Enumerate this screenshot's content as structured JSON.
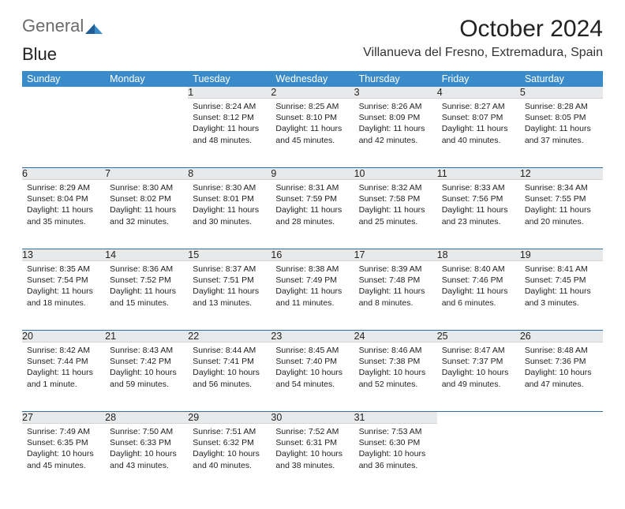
{
  "logo": {
    "text_general": "General",
    "text_blue": "Blue"
  },
  "title": {
    "month": "October 2024",
    "location": "Villanueva del Fresno, Extremadura, Spain"
  },
  "colors": {
    "header_bg": "#3a8bc9",
    "header_fg": "#ffffff",
    "daynum_bg": "#e8e9ea",
    "week_sep": "#2f6fa5",
    "text": "#222222",
    "logo_blue": "#2b7bbf",
    "logo_gray": "#6b6b6b"
  },
  "weekdays": [
    "Sunday",
    "Monday",
    "Tuesday",
    "Wednesday",
    "Thursday",
    "Friday",
    "Saturday"
  ],
  "weeks": [
    [
      null,
      null,
      {
        "n": "1",
        "sr": "Sunrise: 8:24 AM",
        "ss": "Sunset: 8:12 PM",
        "dl": "Daylight: 11 hours and 48 minutes."
      },
      {
        "n": "2",
        "sr": "Sunrise: 8:25 AM",
        "ss": "Sunset: 8:10 PM",
        "dl": "Daylight: 11 hours and 45 minutes."
      },
      {
        "n": "3",
        "sr": "Sunrise: 8:26 AM",
        "ss": "Sunset: 8:09 PM",
        "dl": "Daylight: 11 hours and 42 minutes."
      },
      {
        "n": "4",
        "sr": "Sunrise: 8:27 AM",
        "ss": "Sunset: 8:07 PM",
        "dl": "Daylight: 11 hours and 40 minutes."
      },
      {
        "n": "5",
        "sr": "Sunrise: 8:28 AM",
        "ss": "Sunset: 8:05 PM",
        "dl": "Daylight: 11 hours and 37 minutes."
      }
    ],
    [
      {
        "n": "6",
        "sr": "Sunrise: 8:29 AM",
        "ss": "Sunset: 8:04 PM",
        "dl": "Daylight: 11 hours and 35 minutes."
      },
      {
        "n": "7",
        "sr": "Sunrise: 8:30 AM",
        "ss": "Sunset: 8:02 PM",
        "dl": "Daylight: 11 hours and 32 minutes."
      },
      {
        "n": "8",
        "sr": "Sunrise: 8:30 AM",
        "ss": "Sunset: 8:01 PM",
        "dl": "Daylight: 11 hours and 30 minutes."
      },
      {
        "n": "9",
        "sr": "Sunrise: 8:31 AM",
        "ss": "Sunset: 7:59 PM",
        "dl": "Daylight: 11 hours and 28 minutes."
      },
      {
        "n": "10",
        "sr": "Sunrise: 8:32 AM",
        "ss": "Sunset: 7:58 PM",
        "dl": "Daylight: 11 hours and 25 minutes."
      },
      {
        "n": "11",
        "sr": "Sunrise: 8:33 AM",
        "ss": "Sunset: 7:56 PM",
        "dl": "Daylight: 11 hours and 23 minutes."
      },
      {
        "n": "12",
        "sr": "Sunrise: 8:34 AM",
        "ss": "Sunset: 7:55 PM",
        "dl": "Daylight: 11 hours and 20 minutes."
      }
    ],
    [
      {
        "n": "13",
        "sr": "Sunrise: 8:35 AM",
        "ss": "Sunset: 7:54 PM",
        "dl": "Daylight: 11 hours and 18 minutes."
      },
      {
        "n": "14",
        "sr": "Sunrise: 8:36 AM",
        "ss": "Sunset: 7:52 PM",
        "dl": "Daylight: 11 hours and 15 minutes."
      },
      {
        "n": "15",
        "sr": "Sunrise: 8:37 AM",
        "ss": "Sunset: 7:51 PM",
        "dl": "Daylight: 11 hours and 13 minutes."
      },
      {
        "n": "16",
        "sr": "Sunrise: 8:38 AM",
        "ss": "Sunset: 7:49 PM",
        "dl": "Daylight: 11 hours and 11 minutes."
      },
      {
        "n": "17",
        "sr": "Sunrise: 8:39 AM",
        "ss": "Sunset: 7:48 PM",
        "dl": "Daylight: 11 hours and 8 minutes."
      },
      {
        "n": "18",
        "sr": "Sunrise: 8:40 AM",
        "ss": "Sunset: 7:46 PM",
        "dl": "Daylight: 11 hours and 6 minutes."
      },
      {
        "n": "19",
        "sr": "Sunrise: 8:41 AM",
        "ss": "Sunset: 7:45 PM",
        "dl": "Daylight: 11 hours and 3 minutes."
      }
    ],
    [
      {
        "n": "20",
        "sr": "Sunrise: 8:42 AM",
        "ss": "Sunset: 7:44 PM",
        "dl": "Daylight: 11 hours and 1 minute."
      },
      {
        "n": "21",
        "sr": "Sunrise: 8:43 AM",
        "ss": "Sunset: 7:42 PM",
        "dl": "Daylight: 10 hours and 59 minutes."
      },
      {
        "n": "22",
        "sr": "Sunrise: 8:44 AM",
        "ss": "Sunset: 7:41 PM",
        "dl": "Daylight: 10 hours and 56 minutes."
      },
      {
        "n": "23",
        "sr": "Sunrise: 8:45 AM",
        "ss": "Sunset: 7:40 PM",
        "dl": "Daylight: 10 hours and 54 minutes."
      },
      {
        "n": "24",
        "sr": "Sunrise: 8:46 AM",
        "ss": "Sunset: 7:38 PM",
        "dl": "Daylight: 10 hours and 52 minutes."
      },
      {
        "n": "25",
        "sr": "Sunrise: 8:47 AM",
        "ss": "Sunset: 7:37 PM",
        "dl": "Daylight: 10 hours and 49 minutes."
      },
      {
        "n": "26",
        "sr": "Sunrise: 8:48 AM",
        "ss": "Sunset: 7:36 PM",
        "dl": "Daylight: 10 hours and 47 minutes."
      }
    ],
    [
      {
        "n": "27",
        "sr": "Sunrise: 7:49 AM",
        "ss": "Sunset: 6:35 PM",
        "dl": "Daylight: 10 hours and 45 minutes."
      },
      {
        "n": "28",
        "sr": "Sunrise: 7:50 AM",
        "ss": "Sunset: 6:33 PM",
        "dl": "Daylight: 10 hours and 43 minutes."
      },
      {
        "n": "29",
        "sr": "Sunrise: 7:51 AM",
        "ss": "Sunset: 6:32 PM",
        "dl": "Daylight: 10 hours and 40 minutes."
      },
      {
        "n": "30",
        "sr": "Sunrise: 7:52 AM",
        "ss": "Sunset: 6:31 PM",
        "dl": "Daylight: 10 hours and 38 minutes."
      },
      {
        "n": "31",
        "sr": "Sunrise: 7:53 AM",
        "ss": "Sunset: 6:30 PM",
        "dl": "Daylight: 10 hours and 36 minutes."
      },
      null,
      null
    ]
  ]
}
